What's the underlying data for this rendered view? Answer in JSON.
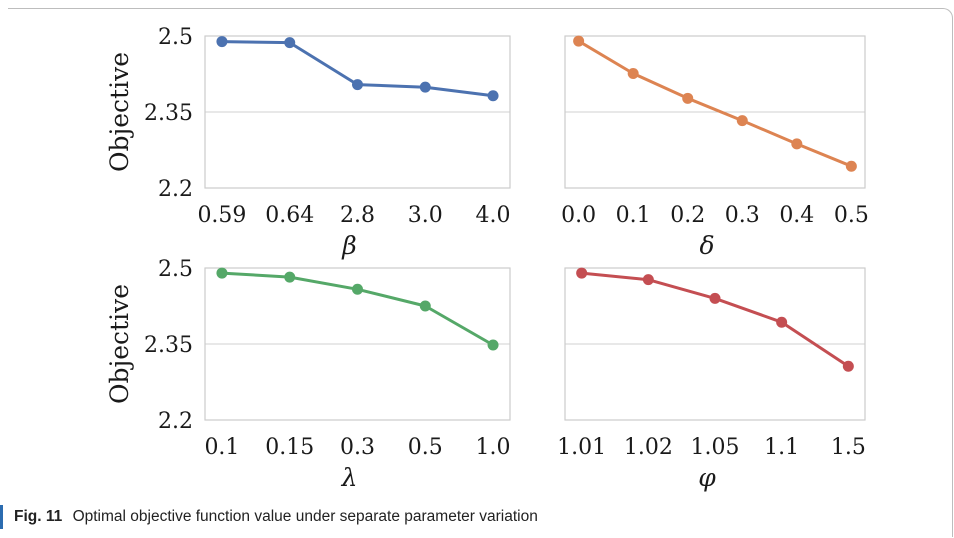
{
  "caption": {
    "label": "Fig. 11",
    "text": "Optimal objective function value under separate parameter variation"
  },
  "chart_data": [
    {
      "type": "line",
      "panel": "top-left",
      "xlabel": "β",
      "ylabel": "Objective",
      "categories": [
        "0.59",
        "0.64",
        "2.8",
        "3.0",
        "4.0"
      ],
      "values": [
        2.489,
        2.487,
        2.404,
        2.399,
        2.382
      ],
      "ylim": [
        2.2,
        2.5
      ],
      "yticks": [
        "2.2",
        "2.35",
        "2.5"
      ],
      "color": "#4c72b0",
      "grid": true
    },
    {
      "type": "line",
      "panel": "top-right",
      "xlabel": "δ",
      "ylabel": "",
      "categories": [
        "0.0",
        "0.1",
        "0.2",
        "0.3",
        "0.4",
        "0.5"
      ],
      "values": [
        2.49,
        2.426,
        2.377,
        2.333,
        2.287,
        2.243
      ],
      "ylim": [
        2.2,
        2.5
      ],
      "yticks": [
        "",
        "",
        ""
      ],
      "color": "#dd8452",
      "grid": true
    },
    {
      "type": "line",
      "panel": "bottom-left",
      "xlabel": "λ",
      "ylabel": "Objective",
      "categories": [
        "0.1",
        "0.15",
        "0.3",
        "0.5",
        "1.0"
      ],
      "values": [
        2.49,
        2.482,
        2.458,
        2.425,
        2.348
      ],
      "ylim": [
        2.2,
        2.5
      ],
      "yticks": [
        "2.2",
        "2.35",
        "2.5"
      ],
      "color": "#55a868",
      "grid": true
    },
    {
      "type": "line",
      "panel": "bottom-right",
      "xlabel": "φ",
      "ylabel": "",
      "categories": [
        "1.01",
        "1.02",
        "1.05",
        "1.1",
        "1.5"
      ],
      "values": [
        2.49,
        2.477,
        2.44,
        2.393,
        2.306
      ],
      "ylim": [
        2.2,
        2.5
      ],
      "yticks": [
        "",
        "",
        ""
      ],
      "color": "#c44e52",
      "grid": true
    }
  ]
}
